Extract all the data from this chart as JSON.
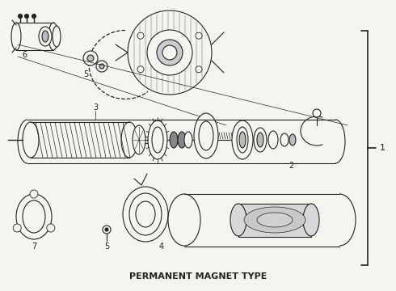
{
  "caption": "PERMANENT MAGNET TYPE",
  "caption_fontsize": 8,
  "caption_fontweight": "bold",
  "bg_color": "#f5f5f0",
  "line_color": "#222222",
  "label_color": "#222222",
  "label_fontsize": 7,
  "fig_width": 4.9,
  "fig_height": 3.6,
  "dpi": 100
}
